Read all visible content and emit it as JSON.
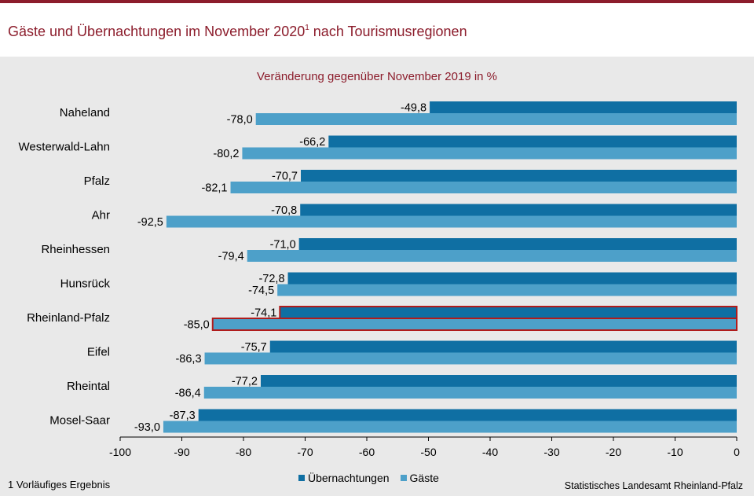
{
  "title": {
    "main_before": "Gäste und Übernachtungen im November 2020",
    "superscript": "1",
    "main_after": " nach Tourismusregionen"
  },
  "footnote": "1 Vorläufiges Ergebnis",
  "source": "Statistisches Landesamt Rheinland-Pfalz",
  "colors": {
    "title": "#8c1d2c",
    "uebernachtungen": "#0f6fa3",
    "gaeste": "#4da0c9",
    "highlight_border": "#b01c1c"
  },
  "chart_data": {
    "type": "bar",
    "orientation": "horizontal",
    "title": "Veränderung gegenüber November 2019 in %",
    "categories": [
      "Naheland",
      "Westerwald-Lahn",
      "Pfalz",
      "Ahr",
      "Rheinhessen",
      "Hunsrück",
      "Rheinland-Pfalz",
      "Eifel",
      "Rheintal",
      "Mosel-Saar"
    ],
    "series": [
      {
        "name": "Übernachtungen",
        "values": [
          -49.8,
          -66.2,
          -70.7,
          -70.8,
          -71.0,
          -72.8,
          -74.1,
          -75.7,
          -77.2,
          -87.3
        ],
        "labels": [
          "-49,8",
          "-66,2",
          "-70,7",
          "-70,8",
          "-71,0",
          "-72,8",
          "-74,1",
          "-75,7",
          "-77,2",
          "-87,3"
        ]
      },
      {
        "name": "Gäste",
        "values": [
          -78.0,
          -80.2,
          -82.1,
          -92.5,
          -79.4,
          -74.5,
          -85.0,
          -86.3,
          -86.4,
          -93.0
        ],
        "labels": [
          "-78,0",
          "-80,2",
          "-82,1",
          "-92,5",
          "-79,4",
          "-74,5",
          "-85,0",
          "-86,3",
          "-86,4",
          "-93,0"
        ]
      }
    ],
    "highlighted_category": "Rheinland-Pfalz",
    "xlim": [
      -100,
      0
    ],
    "xticks": [
      -100,
      -90,
      -80,
      -70,
      -60,
      -50,
      -40,
      -30,
      -20,
      -10,
      0
    ],
    "xtick_labels": [
      "-100",
      "-90",
      "-80",
      "-70",
      "-60",
      "-50",
      "-40",
      "-30",
      "-20",
      "-10",
      "0"
    ],
    "grid": false,
    "legend": "bottom-center"
  }
}
